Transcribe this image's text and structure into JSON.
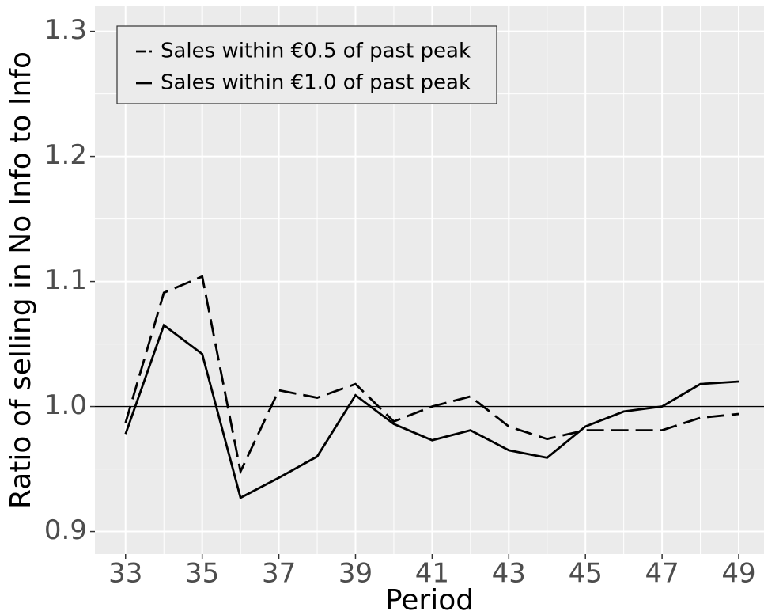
{
  "chart_data": {
    "type": "line",
    "x_label": "Period",
    "y_label": "Ratio of selling in No Info to Info",
    "x": [
      33,
      34,
      35,
      36,
      37,
      38,
      39,
      40,
      41,
      42,
      43,
      44,
      45,
      46,
      47,
      48,
      49
    ],
    "series": [
      {
        "name": "Sales within €0.5 of past peak",
        "color": "#000000",
        "dash": "dashed",
        "values": [
          0.987,
          1.091,
          1.104,
          0.948,
          1.013,
          1.007,
          1.018,
          0.988,
          1.0,
          1.008,
          0.984,
          0.974,
          0.981,
          0.981,
          0.981,
          0.991,
          0.994
        ]
      },
      {
        "name": "Sales within €1.0 of past peak",
        "color": "#000000",
        "dash": "solid",
        "values": [
          0.978,
          1.065,
          1.042,
          0.927,
          0.943,
          0.96,
          1.009,
          0.986,
          0.973,
          0.981,
          0.965,
          0.959,
          0.984,
          0.996,
          1.0,
          1.018,
          1.02
        ]
      }
    ],
    "hline": 1,
    "xlim": [
      32.2,
      49.66
    ],
    "xticks": [
      33,
      35,
      37,
      39,
      41,
      43,
      45,
      47,
      49
    ],
    "xminorticks": [
      34,
      36,
      38,
      40,
      42,
      44,
      46,
      48
    ],
    "ylim": [
      0.882,
      1.32
    ],
    "yticks": [
      0.9,
      {
        "value": 1,
        "label": "1.0"
      },
      1.1,
      1.2,
      1.3
    ],
    "yminorticks": [
      0.95,
      1.05,
      1.15,
      1.25
    ],
    "grid": true,
    "legend": "top-left"
  }
}
